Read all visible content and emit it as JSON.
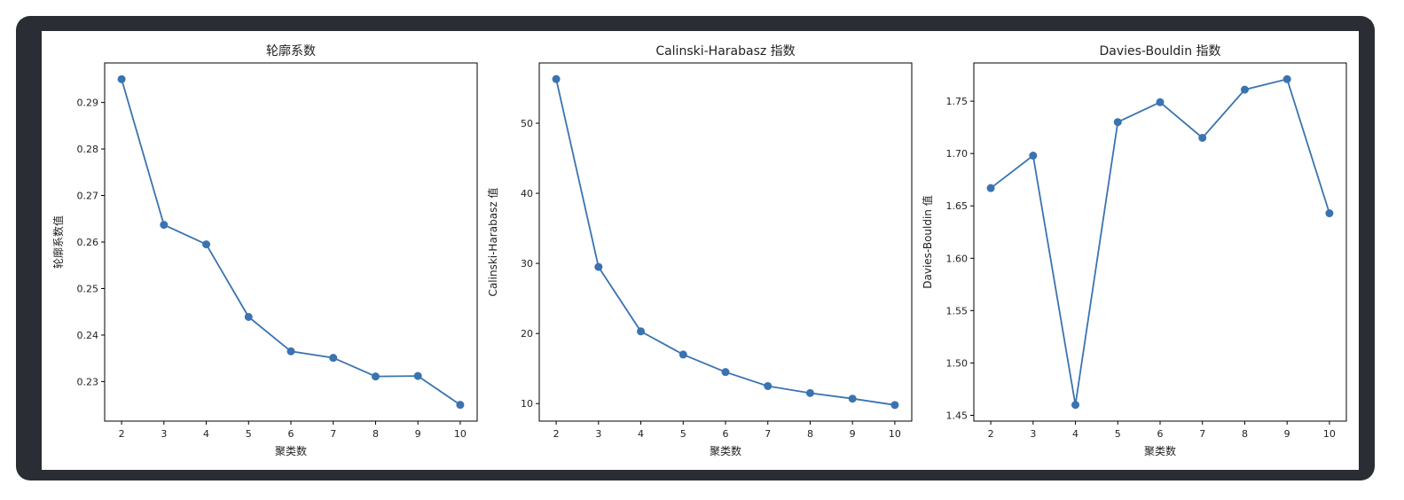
{
  "colors": {
    "line": "#3a73b0",
    "frame_bg": "#2b2d34"
  },
  "chart_data": [
    {
      "type": "line",
      "title": "轮廓系数",
      "xlabel": "聚类数",
      "ylabel": "轮廓系数值",
      "x": [
        2,
        3,
        4,
        5,
        6,
        7,
        8,
        9,
        10
      ],
      "values": [
        0.295,
        0.2637,
        0.2595,
        0.2439,
        0.2365,
        0.2351,
        0.2311,
        0.2312,
        0.225
      ],
      "ylim": [
        0.2215,
        0.2985
      ],
      "yticks": [
        0.23,
        0.24,
        0.25,
        0.26,
        0.27,
        0.28,
        0.29
      ],
      "ytick_labels": [
        "0.23",
        "0.24",
        "0.25",
        "0.26",
        "0.27",
        "0.28",
        "0.29"
      ],
      "grid": false
    },
    {
      "type": "line",
      "title": "Calinski-Harabasz 指数",
      "xlabel": "聚类数",
      "ylabel": "Calinski-Harabasz 值",
      "x": [
        2,
        3,
        4,
        5,
        6,
        7,
        8,
        9,
        10
      ],
      "values": [
        56.3,
        29.5,
        20.3,
        17.0,
        14.5,
        12.5,
        11.5,
        10.7,
        9.8
      ],
      "ylim": [
        7.5,
        58.6
      ],
      "yticks": [
        10,
        20,
        30,
        40,
        50
      ],
      "ytick_labels": [
        "10",
        "20",
        "30",
        "40",
        "50"
      ],
      "grid": false
    },
    {
      "type": "line",
      "title": "Davies-Bouldin 指数",
      "xlabel": "聚类数",
      "ylabel": "Davies-Bouldin 值",
      "x": [
        2,
        3,
        4,
        5,
        6,
        7,
        8,
        9,
        10
      ],
      "values": [
        1.667,
        1.698,
        1.46,
        1.73,
        1.749,
        1.715,
        1.761,
        1.771,
        1.643
      ],
      "ylim": [
        1.4445,
        1.7865
      ],
      "yticks": [
        1.45,
        1.5,
        1.55,
        1.6,
        1.65,
        1.7,
        1.75
      ],
      "ytick_labels": [
        "1.45",
        "1.50",
        "1.55",
        "1.60",
        "1.65",
        "1.70",
        "1.75"
      ],
      "grid": false
    }
  ]
}
